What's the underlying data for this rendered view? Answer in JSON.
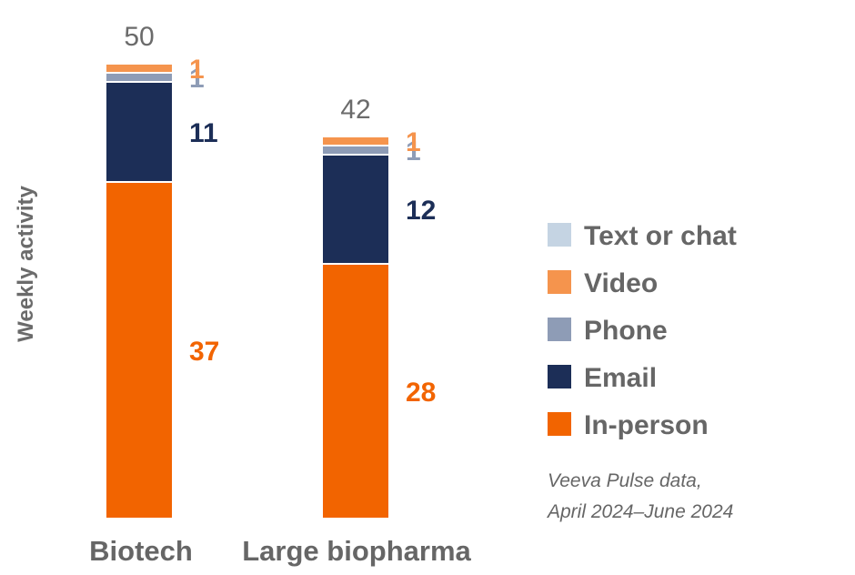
{
  "chart_data": {
    "type": "bar",
    "stacked": true,
    "ylabel": "Weekly activity",
    "categories": [
      "Biotech",
      "Large biopharma"
    ],
    "totals": [
      "50",
      "42"
    ],
    "series": [
      {
        "name": "In-person",
        "color": "#f26400",
        "label_color": "#f26400",
        "values": [
          37,
          28
        ]
      },
      {
        "name": "Email",
        "color": "#1c2e57",
        "label_color": "#1c2e57",
        "values": [
          11,
          12
        ]
      },
      {
        "name": "Phone",
        "color": "#8e9cb6",
        "label_color": "#8e9cb6",
        "values": [
          1,
          1
        ]
      },
      {
        "name": "Video",
        "color": "#f5944d",
        "label_color": "#f5944d",
        "values": [
          1,
          1
        ]
      },
      {
        "name": "Text or chat",
        "color": "#c5d4e3",
        "label_color": "#c5d4e3",
        "values": [
          0,
          0
        ]
      }
    ],
    "legend": {
      "position": "right",
      "order": [
        "Text or chat",
        "Video",
        "Phone",
        "Email",
        "In-person"
      ]
    },
    "note": [
      "Veeva Pulse data,",
      "April 2024–June 2024"
    ],
    "grid": false
  }
}
